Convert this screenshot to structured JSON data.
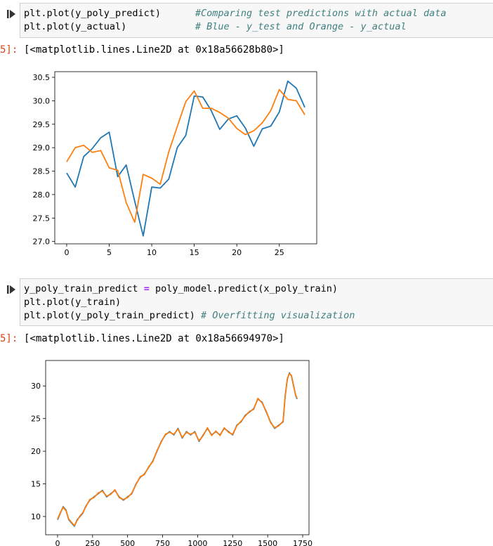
{
  "cells": [
    {
      "code_lines": [
        {
          "code": "plt.plot(y_poly_predict)      ",
          "comment": "#Comparing test predictions with actual data"
        },
        {
          "code": "plt.plot(y_actual)            ",
          "comment": "# Blue - y_test and Orange - y_actual"
        }
      ],
      "output_prompt": "5]:",
      "output_text": "[<matplotlib.lines.Line2D at 0x18a56628b80>]"
    },
    {
      "code_lines": [
        {
          "pre": "y_poly_train_predict ",
          "op": "=",
          "post": " poly_model.predict(x_poly_train)"
        },
        {
          "pre": "plt.plot(y_train)"
        },
        {
          "pre": "plt.plot(y_poly_train_predict) ",
          "comment": "# Overfitting visualization"
        }
      ],
      "output_prompt": "5]:",
      "output_text": "[<matplotlib.lines.Line2D at 0x18a56694970>]"
    }
  ],
  "chart_data": [
    {
      "type": "line",
      "xlim": [
        -1.4,
        29.4
      ],
      "ylim": [
        26.95,
        30.62
      ],
      "xticks": [
        0,
        5,
        10,
        15,
        20,
        25
      ],
      "yticks": [
        27.0,
        27.5,
        28.0,
        28.5,
        29.0,
        29.5,
        30.0,
        30.5
      ],
      "grid": false,
      "series": [
        {
          "color": "#1f77b4",
          "x": [
            0,
            1,
            2,
            3,
            4,
            5,
            6,
            7,
            8,
            9,
            10,
            11,
            12,
            13,
            14,
            15,
            16,
            17,
            18,
            19,
            20,
            21,
            22,
            23,
            24,
            25,
            26,
            27,
            28
          ],
          "values": [
            28.46,
            28.16,
            28.81,
            28.98,
            29.21,
            29.33,
            28.38,
            28.63,
            27.86,
            27.12,
            28.16,
            28.14,
            28.33,
            29.0,
            29.26,
            30.1,
            30.08,
            29.79,
            29.39,
            29.61,
            29.68,
            29.42,
            29.03,
            29.4,
            29.46,
            29.76,
            30.42,
            30.27,
            29.86
          ]
        },
        {
          "color": "#ff7f0e",
          "x": [
            0,
            1,
            2,
            3,
            4,
            5,
            6,
            7,
            8,
            9,
            10,
            11,
            12,
            13,
            14,
            15,
            16,
            17,
            18,
            19,
            20,
            21,
            22,
            23,
            24,
            25,
            26,
            27,
            28
          ],
          "values": [
            28.7,
            29.0,
            29.05,
            28.9,
            28.94,
            28.57,
            28.52,
            27.83,
            27.41,
            28.43,
            28.35,
            28.22,
            28.91,
            29.45,
            29.98,
            30.21,
            29.84,
            29.84,
            29.75,
            29.63,
            29.41,
            29.28,
            29.36,
            29.53,
            29.79,
            30.24,
            30.03,
            30.0,
            29.7
          ]
        }
      ]
    },
    {
      "type": "line",
      "xlim": [
        -85,
        1795
      ],
      "ylim": [
        7.2,
        33.9
      ],
      "xticks": [
        0,
        250,
        500,
        750,
        1000,
        1250,
        1500,
        1750
      ],
      "yticks": [
        10,
        15,
        20,
        25,
        30
      ],
      "grid": false,
      "series": [
        {
          "color": "#1f77b4",
          "x": [
            0,
            20,
            40,
            60,
            80,
            100,
            120,
            140,
            160,
            180,
            200,
            230,
            260,
            290,
            320,
            350,
            380,
            410,
            440,
            470,
            500,
            530,
            560,
            590,
            620,
            650,
            680,
            710,
            740,
            770,
            800,
            830,
            860,
            890,
            920,
            950,
            980,
            1010,
            1040,
            1070,
            1100,
            1130,
            1160,
            1190,
            1220,
            1250,
            1280,
            1310,
            1340,
            1370,
            1400,
            1430,
            1460,
            1490,
            1520,
            1550,
            1580,
            1610,
            1625,
            1640,
            1655,
            1670,
            1685,
            1700,
            1710
          ],
          "values": [
            9.5,
            10.5,
            11.5,
            11.0,
            9.5,
            9.0,
            8.5,
            9.5,
            10.0,
            10.5,
            11.5,
            12.5,
            13.0,
            13.5,
            14.0,
            13.0,
            13.5,
            14.0,
            13.0,
            12.5,
            13.0,
            13.5,
            15.0,
            16.0,
            16.5,
            17.5,
            18.5,
            20.0,
            21.5,
            22.5,
            23.0,
            22.5,
            23.5,
            22.0,
            23.0,
            22.5,
            23.0,
            21.5,
            22.5,
            23.5,
            22.5,
            23.0,
            22.5,
            23.5,
            23.0,
            22.5,
            24.0,
            24.5,
            25.5,
            26.0,
            26.5,
            28.0,
            27.5,
            26.0,
            24.5,
            23.5,
            24.0,
            24.5,
            28.5,
            31.0,
            32.0,
            31.5,
            30.0,
            28.5,
            28.0
          ]
        },
        {
          "color": "#ff7f0e",
          "x": [
            0,
            20,
            40,
            60,
            80,
            100,
            120,
            140,
            160,
            180,
            200,
            230,
            260,
            290,
            320,
            350,
            380,
            410,
            440,
            470,
            500,
            530,
            560,
            590,
            620,
            650,
            680,
            710,
            740,
            770,
            800,
            830,
            860,
            890,
            920,
            950,
            980,
            1010,
            1040,
            1070,
            1100,
            1130,
            1160,
            1190,
            1220,
            1250,
            1280,
            1310,
            1340,
            1370,
            1400,
            1430,
            1460,
            1490,
            1520,
            1550,
            1580,
            1610,
            1625,
            1640,
            1655,
            1670,
            1685,
            1700,
            1710
          ],
          "values": [
            9.6,
            10.6,
            11.4,
            10.9,
            9.6,
            9.1,
            8.6,
            9.4,
            10.1,
            10.6,
            11.4,
            12.6,
            12.9,
            13.6,
            13.9,
            13.1,
            13.4,
            14.1,
            12.9,
            12.6,
            12.9,
            13.6,
            14.9,
            16.1,
            16.4,
            17.6,
            18.4,
            20.1,
            21.4,
            22.6,
            22.9,
            22.6,
            23.4,
            22.1,
            22.9,
            22.6,
            22.9,
            21.6,
            22.4,
            23.6,
            22.4,
            23.1,
            22.4,
            23.6,
            22.9,
            22.6,
            23.9,
            24.6,
            25.4,
            26.1,
            26.4,
            28.1,
            27.4,
            26.1,
            24.4,
            23.6,
            23.9,
            24.6,
            28.4,
            31.1,
            31.9,
            31.6,
            29.9,
            28.6,
            28.1
          ]
        }
      ]
    }
  ]
}
